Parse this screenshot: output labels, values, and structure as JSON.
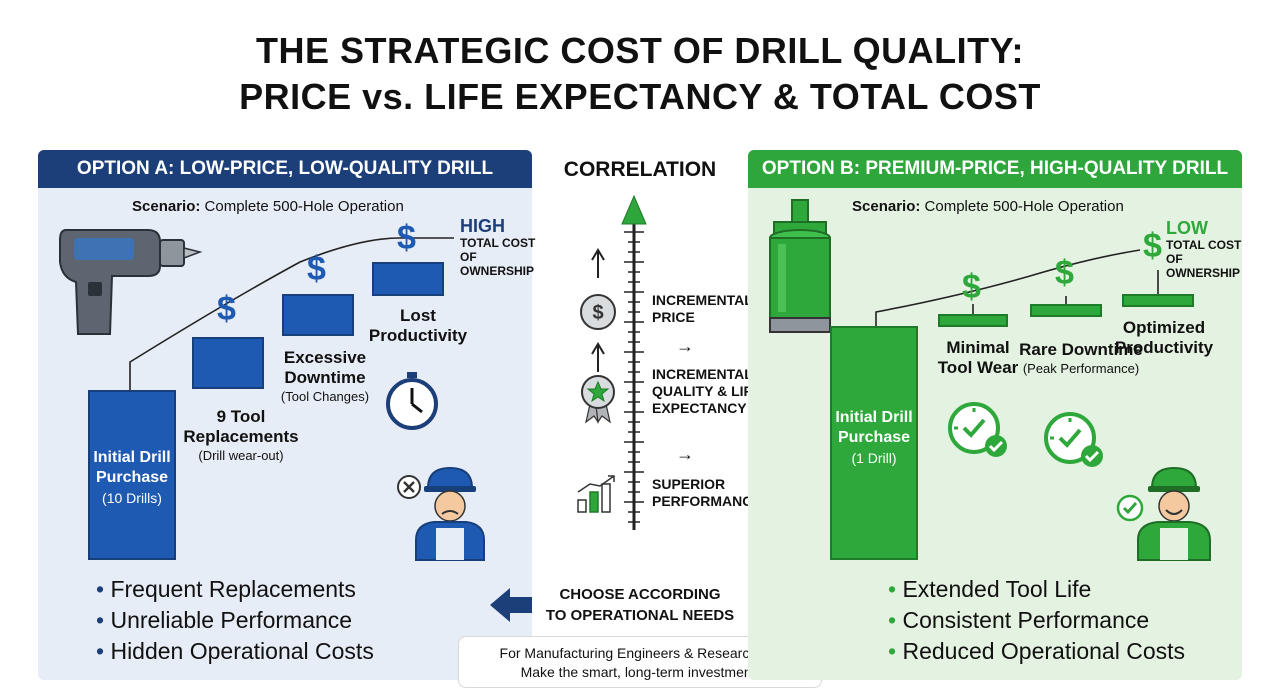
{
  "title": {
    "line1": "THE STRATEGIC COST OF DRILL QUALITY:",
    "line2": "PRICE vs. LIFE EXPECTANCY & TOTAL COST"
  },
  "option_a": {
    "header": "OPTION A: LOW-PRICE, LOW-QUALITY DRILL",
    "scenario_label": "Scenario:",
    "scenario_text": " Complete 500-Hole Operation",
    "steps": [
      {
        "label": "Initial Drill Purchase",
        "sub": "(10 Drills)"
      },
      {
        "label": "9 Tool Replacements",
        "sub": "(Drill wear-out)"
      },
      {
        "label": "Excessive Downtime",
        "sub": "(Tool Changes)"
      },
      {
        "label": "Lost Productivity",
        "sub": ""
      }
    ],
    "dollar_symbol": "$",
    "tco_level": "HIGH",
    "tco_text": "TOTAL COST OF OWNERSHIP",
    "bullets": [
      "Frequent Replacements",
      "Unreliable Performance",
      "Hidden Operational Costs"
    ],
    "icons": [
      "hammer-drill-icon",
      "stopwatch-icon",
      "error-x-icon",
      "frustrated-worker-icon"
    ],
    "accent_color": "#1c3f7a"
  },
  "option_b": {
    "header": "OPTION B: PREMIUM-PRICE, HIGH-QUALITY DRILL",
    "scenario_label": "Scenario:",
    "scenario_text": " Complete 500-Hole Operation",
    "steps": [
      {
        "label": "Initial Drill Purchase",
        "sub": "(1 Drill)"
      },
      {
        "label": "Minimal Tool Wear",
        "sub": ""
      },
      {
        "label": "Rare Downtime",
        "sub": "(Peak Performance)"
      },
      {
        "label": "Optimized Productivity",
        "sub": ""
      }
    ],
    "dollar_symbol": "$",
    "tco_level": "LOW",
    "tco_text": "TOTAL COST OF OWNERSHIP",
    "bullets": [
      "Extended Tool Life",
      "Consistent Performance",
      "Reduced Operational Costs"
    ],
    "icons": [
      "core-drill-bit-icon",
      "check-clock-icon",
      "checkmark-icon",
      "happy-worker-icon"
    ],
    "accent_color": "#2fa83b"
  },
  "correlation": {
    "title": "CORRELATION",
    "items": [
      {
        "label": "INCREMENTAL PRICE",
        "icon": "dollar-coin-icon"
      },
      {
        "label": "INCREMENTAL QUALITY & LIFE EXPECTANCY",
        "icon": "quality-badge-icon"
      },
      {
        "label": "SUPERIOR PERFORMANCE",
        "icon": "growth-chart-icon"
      }
    ],
    "arrow_glyph": "→"
  },
  "choose": {
    "line1": "CHOOSE ACCORDING",
    "line2": "TO OPERATIONAL NEEDS"
  },
  "footer": {
    "line1": "For Manufacturing Engineers & Researchers:",
    "line2": "Make the smart, long-term investment."
  }
}
